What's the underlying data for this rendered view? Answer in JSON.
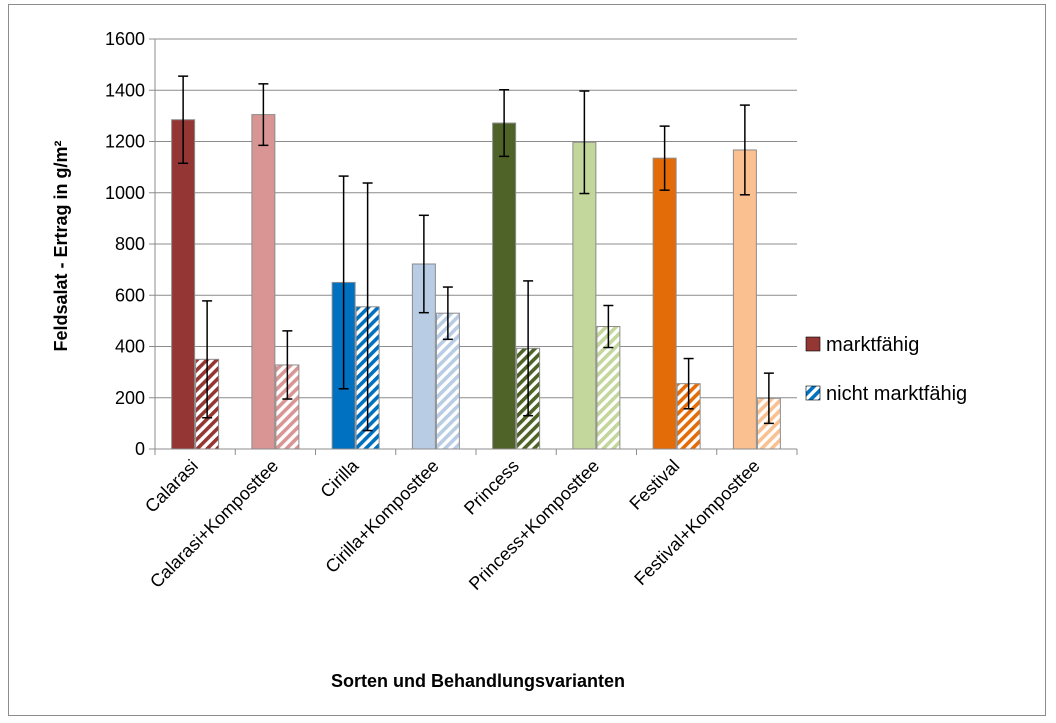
{
  "chart_data": {
    "type": "bar",
    "xlabel": "Sorten und Behandlungsvarianten",
    "ylabel": "Feldsalat - Ertrag in g/m²",
    "ylim": [
      0,
      1600
    ],
    "yticks": [
      0,
      200,
      400,
      600,
      800,
      1000,
      1200,
      1400,
      1600
    ],
    "grid": "horizontal",
    "legend_position": "right",
    "categories": [
      "Calarasi",
      "Calarasi+Komposttee",
      "Cirilla",
      "Cirilla+Komposttee",
      "Princess",
      "Princess+Komposttee",
      "Festival",
      "Festival+Komposttee"
    ],
    "category_colors": [
      "#943634",
      "#d99594",
      "#0070c0",
      "#b8cce4",
      "#4f6228",
      "#c3d69b",
      "#e36c09",
      "#fac090"
    ],
    "series": [
      {
        "name": "marktfähig",
        "pattern": "solid",
        "legend_color": "#943634",
        "values": [
          1285,
          1305,
          650,
          722,
          1272,
          1197,
          1135,
          1167
        ],
        "error": [
          170,
          120,
          415,
          190,
          130,
          200,
          125,
          175
        ]
      },
      {
        "name": "nicht marktfähig",
        "pattern": "diagonal-stripes",
        "legend_color": "#0070c0",
        "values": [
          350,
          328,
          555,
          530,
          393,
          478,
          255,
          198
        ],
        "error": [
          228,
          133,
          483,
          102,
          263,
          82,
          98,
          98
        ]
      }
    ]
  }
}
